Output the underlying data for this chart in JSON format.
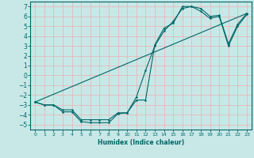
{
  "title": "",
  "xlabel": "Humidex (Indice chaleur)",
  "ylabel": "",
  "bg_color": "#c8e8e8",
  "grid_color": "#e8b8b8",
  "line_color": "#006666",
  "xlim": [
    -0.5,
    23.5
  ],
  "ylim": [
    -5.5,
    7.5
  ],
  "xticks": [
    0,
    1,
    2,
    3,
    4,
    5,
    6,
    7,
    8,
    9,
    10,
    11,
    12,
    13,
    14,
    15,
    16,
    17,
    18,
    19,
    20,
    21,
    22,
    23
  ],
  "yticks": [
    -5,
    -4,
    -3,
    -2,
    -1,
    0,
    1,
    2,
    3,
    4,
    5,
    6,
    7
  ],
  "line1_x": [
    0,
    1,
    2,
    3,
    4,
    5,
    6,
    7,
    8,
    9,
    10,
    11,
    12,
    13,
    14,
    15,
    16,
    17,
    18,
    19,
    20,
    21,
    22,
    23
  ],
  "line1_y": [
    -2.7,
    -3.0,
    -3.0,
    -3.7,
    -3.7,
    -4.7,
    -4.8,
    -4.8,
    -4.8,
    -3.9,
    -3.8,
    -2.5,
    -2.5,
    3.1,
    4.8,
    5.3,
    7.0,
    7.0,
    6.8,
    6.0,
    6.1,
    3.2,
    5.2,
    6.3
  ],
  "line2_x": [
    0,
    1,
    2,
    3,
    4,
    5,
    6,
    7,
    8,
    9,
    10,
    11,
    12,
    13,
    14,
    15,
    16,
    17,
    18,
    19,
    20,
    21,
    22,
    23
  ],
  "line2_y": [
    -2.7,
    -3.0,
    -3.0,
    -3.5,
    -3.5,
    -4.5,
    -4.5,
    -4.5,
    -4.5,
    -3.8,
    -3.8,
    -2.2,
    0.5,
    3.0,
    4.5,
    5.5,
    6.8,
    7.0,
    6.5,
    5.8,
    6.0,
    3.0,
    5.0,
    6.2
  ],
  "line3_x": [
    0,
    23
  ],
  "line3_y": [
    -2.7,
    6.3
  ]
}
